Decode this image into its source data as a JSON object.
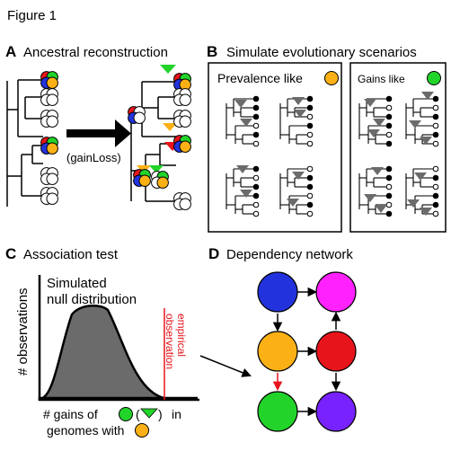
{
  "figure_title": "Figure 1",
  "panels": {
    "A": {
      "letter": "A",
      "title": "Ancestral reconstruction",
      "arrow_label": "(gainLoss)"
    },
    "B": {
      "letter": "B",
      "title": "Simulate evolutionary scenarios",
      "box1_label": "Prevalence like",
      "box2_label": "Gains like"
    },
    "C": {
      "letter": "C",
      "title": "Association test",
      "curve_label_line1": "Simulated",
      "curve_label_line2": "null distribution",
      "y_axis_label": "# observations",
      "empirical_line1": "empirical",
      "empirical_line2": "observation",
      "x_label_part1": "# gains of",
      "x_label_part2": "(",
      "x_label_part3": ")",
      "x_label_part4": "in",
      "x_label_line2": "genomes with"
    },
    "D": {
      "letter": "D",
      "title": "Dependency network"
    }
  },
  "colors": {
    "red": "#e8141c",
    "green": "#22d42a",
    "blue": "#2233dd",
    "orange": "#fbb116",
    "magenta": "#ff22ff",
    "purple": "#7722ff",
    "gray_fill": "#6b6b6b",
    "empirical_red": "#e8141c"
  }
}
